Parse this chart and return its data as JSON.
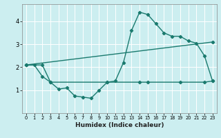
{
  "title": "",
  "xlabel": "Humidex (Indice chaleur)",
  "ylabel": "",
  "bg_color": "#cceef0",
  "grid_color": "#ffffff",
  "line_color": "#1a7a6e",
  "xlim": [
    -0.5,
    23.5
  ],
  "ylim": [
    0.0,
    4.75
  ],
  "yticks": [
    1,
    2,
    3,
    4
  ],
  "xticks": [
    0,
    1,
    2,
    3,
    4,
    5,
    6,
    7,
    8,
    9,
    10,
    11,
    12,
    13,
    14,
    15,
    16,
    17,
    18,
    19,
    20,
    21,
    22,
    23
  ],
  "series1_x": [
    0,
    1,
    2,
    3,
    4,
    5,
    6,
    7,
    8,
    9,
    10,
    11,
    12,
    13,
    14,
    15,
    16,
    17,
    18,
    19,
    20,
    21,
    22,
    23
  ],
  "series1_y": [
    2.1,
    2.1,
    1.6,
    1.35,
    1.05,
    1.1,
    0.75,
    0.7,
    0.65,
    1.0,
    1.35,
    1.4,
    2.2,
    3.6,
    4.4,
    4.3,
    3.9,
    3.5,
    3.35,
    3.35,
    3.15,
    3.05,
    2.5,
    1.4
  ],
  "series2_x": [
    0,
    2,
    3,
    10,
    14,
    15,
    19,
    22,
    23
  ],
  "series2_y": [
    2.1,
    2.1,
    1.35,
    1.35,
    1.35,
    1.35,
    1.35,
    1.35,
    1.4
  ],
  "series3_x": [
    0,
    23
  ],
  "series3_y": [
    2.1,
    3.1
  ],
  "marker": "D",
  "markersize": 2.2,
  "linewidth": 1.0
}
